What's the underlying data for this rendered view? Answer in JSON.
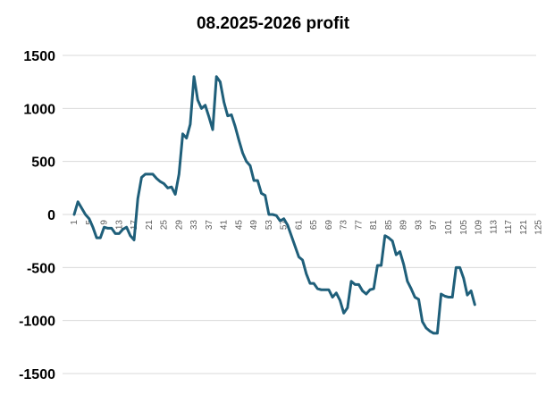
{
  "chart_data": {
    "type": "line",
    "title": "08.2025-2026 profit",
    "xlabel": "",
    "ylabel": "",
    "ylim": [
      -1500,
      1500
    ],
    "yticks": [
      1500,
      1000,
      500,
      0,
      -500,
      -1000,
      -1500
    ],
    "xlim": [
      1,
      125
    ],
    "xticks": [
      1,
      5,
      9,
      13,
      17,
      21,
      25,
      29,
      33,
      37,
      41,
      45,
      49,
      53,
      57,
      61,
      65,
      69,
      73,
      77,
      81,
      85,
      89,
      93,
      97,
      101,
      105,
      109,
      113,
      117,
      121,
      125
    ],
    "grid": true,
    "legend": "none",
    "line_color": "#1f5f7a",
    "series": [
      {
        "values": [
          0,
          120,
          60,
          0,
          -40,
          -120,
          -220,
          -220,
          -120,
          -130,
          -130,
          -180,
          -180,
          -140,
          -120,
          -200,
          -240,
          150,
          350,
          380,
          380,
          380,
          340,
          310,
          290,
          250,
          260,
          190,
          380,
          760,
          720,
          850,
          1300,
          1080,
          1000,
          1030,
          920,
          800,
          1300,
          1250,
          1060,
          930,
          940,
          830,
          700,
          580,
          500,
          460,
          320,
          320,
          200,
          180,
          0,
          0,
          -10,
          -60,
          -40,
          -100,
          -200,
          -300,
          -400,
          -430,
          -560,
          -650,
          -650,
          -700,
          -710,
          -710,
          -710,
          -780,
          -740,
          -810,
          -930,
          -880,
          -630,
          -660,
          -660,
          -720,
          -750,
          -710,
          -700,
          -480,
          -480,
          -200,
          -220,
          -250,
          -380,
          -350,
          -470,
          -630,
          -700,
          -780,
          -800,
          -1010,
          -1070,
          -1100,
          -1120,
          -1120,
          -750,
          -770,
          -780,
          -780,
          -500,
          -500,
          -600,
          -760,
          -720,
          -850
        ]
      }
    ]
  }
}
